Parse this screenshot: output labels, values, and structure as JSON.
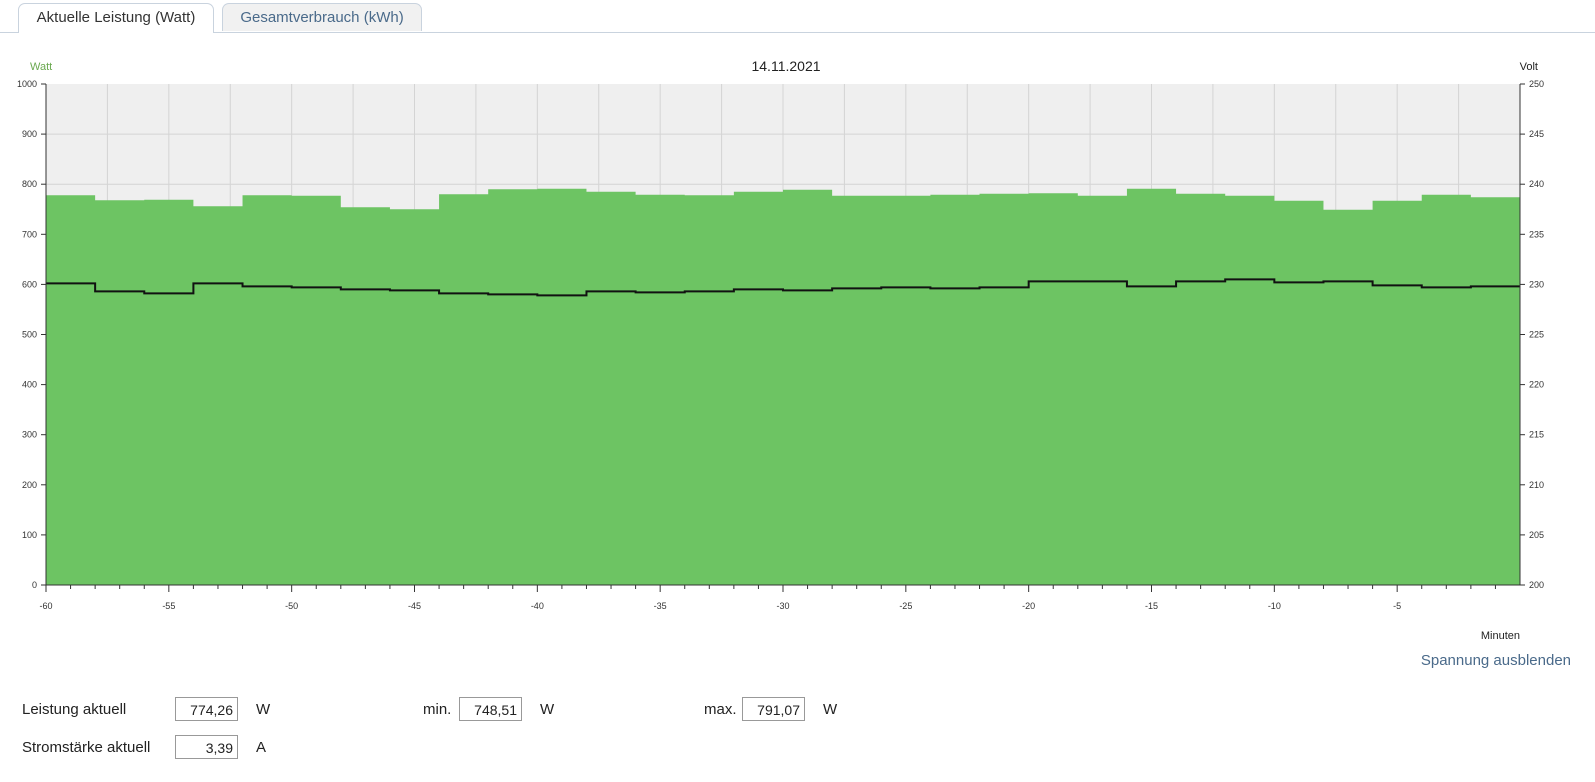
{
  "tabs": [
    {
      "label": "Aktuelle Leistung (Watt)",
      "active": true
    },
    {
      "label": "Gesamtverbrauch (kWh)",
      "active": false
    }
  ],
  "toggle_voltage_label": "Spannung ausblenden",
  "stats": {
    "leistung_label": "Leistung aktuell",
    "leistung_value": "774,26",
    "leistung_unit": "W",
    "min_label": "min.",
    "min_value": "748,51",
    "min_unit": "W",
    "max_label": "max.",
    "max_value": "791,07",
    "max_unit": "W",
    "strom_label": "Stromstärke aktuell",
    "strom_value": "3,39",
    "strom_unit": "A"
  },
  "chart_data": {
    "type": "area",
    "title": "14.11.2021",
    "xlabel": "Minuten",
    "ylabel_left": "Watt",
    "ylabel_right": "Volt",
    "xlim": [
      -60,
      0
    ],
    "ylim_left": [
      0,
      1000
    ],
    "ylim_right": [
      200,
      250
    ],
    "x_ticks": [
      -60,
      -55,
      -50,
      -45,
      -40,
      -35,
      -30,
      -25,
      -20,
      -15,
      -10,
      -5
    ],
    "y_ticks_left": [
      0,
      100,
      200,
      300,
      400,
      500,
      600,
      700,
      800,
      900,
      1000
    ],
    "y_ticks_right": [
      200,
      205,
      210,
      215,
      220,
      225,
      230,
      235,
      240,
      245,
      250
    ],
    "grid": true,
    "colors": {
      "power": "#6dc463",
      "voltage": "#111111",
      "plot_bg": "#efefef",
      "watt_label": "#6aa84f"
    },
    "series": [
      {
        "name": "Watt",
        "axis": "left",
        "style": "step-area",
        "x": [
          -60,
          -58,
          -56,
          -54,
          -52,
          -50,
          -48,
          -46,
          -44,
          -42,
          -40,
          -38,
          -36,
          -34,
          -32,
          -30,
          -28,
          -26,
          -24,
          -22,
          -20,
          -18,
          -16,
          -14,
          -12,
          -10,
          -8,
          -6,
          -4,
          -2
        ],
        "values": [
          778,
          768,
          769,
          756,
          778,
          777,
          754,
          750,
          780,
          790,
          791,
          785,
          779,
          778,
          785,
          789,
          777,
          777,
          779,
          781,
          782,
          777,
          791,
          781,
          777,
          767,
          749,
          767,
          779,
          774
        ]
      },
      {
        "name": "Volt",
        "axis": "right",
        "style": "step-line",
        "x": [
          -60,
          -58,
          -56,
          -54,
          -52,
          -50,
          -48,
          -46,
          -44,
          -42,
          -40,
          -38,
          -36,
          -34,
          -32,
          -30,
          -28,
          -26,
          -24,
          -22,
          -20,
          -18,
          -16,
          -14,
          -12,
          -10,
          -8,
          -6,
          -4,
          -2
        ],
        "values": [
          230.1,
          229.3,
          229.1,
          230.1,
          229.8,
          229.7,
          229.5,
          229.4,
          229.1,
          229.0,
          228.9,
          229.3,
          229.2,
          229.3,
          229.5,
          229.4,
          229.6,
          229.7,
          229.6,
          229.7,
          230.3,
          230.3,
          229.8,
          230.3,
          230.5,
          230.2,
          230.3,
          229.9,
          229.7,
          229.8
        ]
      }
    ]
  }
}
